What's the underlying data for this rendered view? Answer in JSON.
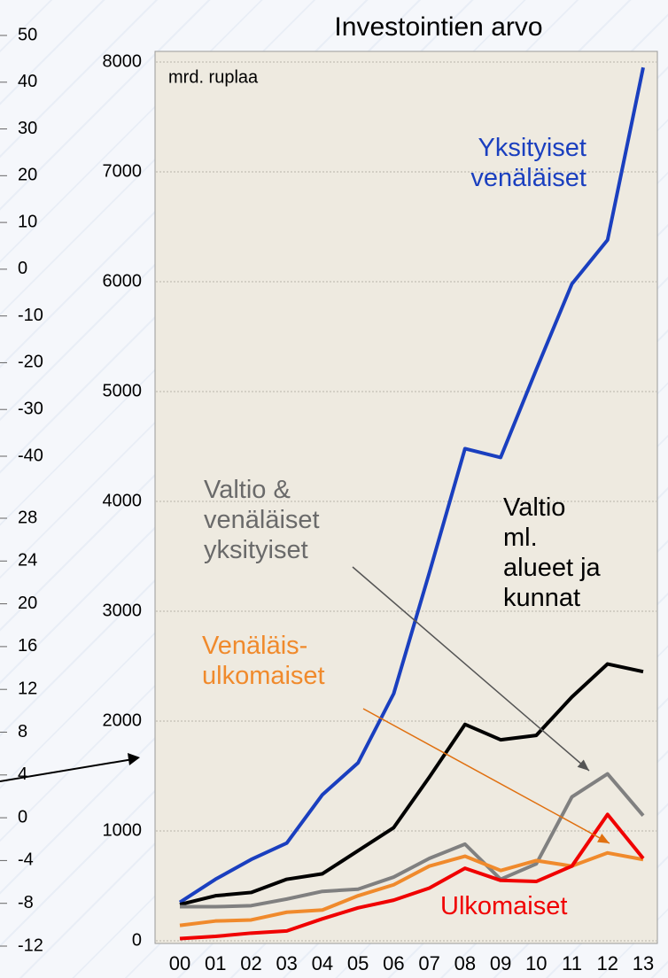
{
  "chart_data": [
    {
      "type": "axis",
      "ylim": [
        -40,
        50
      ],
      "yticks": [
        50,
        40,
        30,
        20,
        10,
        0,
        -10,
        -20,
        -30,
        -40
      ]
    },
    {
      "type": "axis",
      "ylim": [
        -12,
        28
      ],
      "yticks": [
        28,
        24,
        20,
        16,
        12,
        8,
        4,
        0,
        -4,
        -8,
        -12
      ]
    },
    {
      "type": "line",
      "title": "Investointien arvo",
      "y_unit": "mrd. ruplaa",
      "categories": [
        "00",
        "01",
        "02",
        "03",
        "04",
        "05",
        "06",
        "07",
        "08",
        "09",
        "10",
        "11",
        "12",
        "13"
      ],
      "ylim": [
        0,
        8000
      ],
      "yticks": [
        0,
        1000,
        2000,
        3000,
        4000,
        5000,
        6000,
        7000,
        8000
      ],
      "grid": true,
      "series": [
        {
          "name": "Yksityiset venäläiset",
          "color": "#1a3fbf",
          "values": [
            350,
            560,
            740,
            890,
            1330,
            1620,
            2250,
            3350,
            4480,
            4400,
            5200,
            5980,
            6380,
            7950
          ]
        },
        {
          "name": "Valtio ml. alueet ja kunnat",
          "color": "#000000",
          "values": [
            330,
            410,
            440,
            560,
            610,
            820,
            1030,
            1490,
            1970,
            1830,
            1870,
            2220,
            2520,
            2450
          ]
        },
        {
          "name": "Valtio & venäläiset yksityiset",
          "color": "#808080",
          "values": [
            310,
            310,
            320,
            380,
            450,
            470,
            580,
            750,
            880,
            560,
            700,
            1310,
            1520,
            1140
          ]
        },
        {
          "name": "Venäläis-ulkomaiset",
          "color": "#f08a2c",
          "values": [
            140,
            180,
            190,
            260,
            280,
            410,
            510,
            680,
            770,
            640,
            730,
            680,
            800,
            740
          ]
        },
        {
          "name": "Ulkomaiset",
          "color": "#f00000",
          "values": [
            20,
            40,
            70,
            90,
            200,
            300,
            370,
            480,
            660,
            550,
            540,
            680,
            1150,
            750
          ]
        }
      ]
    }
  ]
}
